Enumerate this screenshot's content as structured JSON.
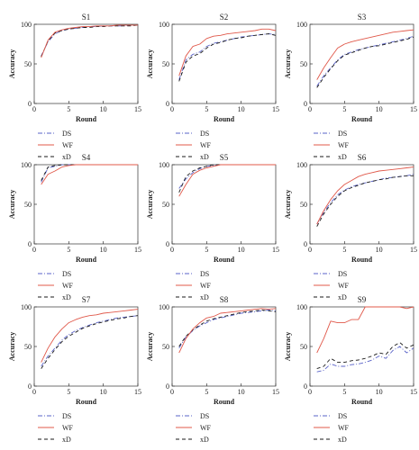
{
  "figure": {
    "title": ""
  },
  "styles": {
    "DS": {
      "color": "#5a63c8",
      "dash": "5,2,1,2"
    },
    "WF": {
      "color": "#e0584a",
      "dash": ""
    },
    "xD": {
      "color": "#1a1a1a",
      "dash": "4,3"
    }
  },
  "chart_data": [
    {
      "type": "line",
      "title": "S1",
      "xlabel": "Round",
      "ylabel": "Accuracy",
      "xlim": [
        0,
        15
      ],
      "ylim": [
        0,
        100
      ],
      "xticks": [
        0,
        5,
        10,
        15
      ],
      "yticks": [
        0,
        50,
        100
      ],
      "x": [
        1,
        2,
        3,
        4,
        5,
        6,
        7,
        8,
        9,
        10,
        11,
        12,
        13,
        14,
        15
      ],
      "series": [
        {
          "name": "DS",
          "values": [
            60,
            78,
            88,
            92,
            94,
            95,
            96,
            97,
            97,
            98,
            98,
            98,
            98,
            99,
            99
          ]
        },
        {
          "name": "WF",
          "values": [
            58,
            80,
            90,
            93,
            95,
            96,
            97,
            97,
            98,
            98,
            98,
            99,
            99,
            99,
            99
          ]
        },
        {
          "name": "xD",
          "values": [
            59,
            79,
            89,
            92,
            94,
            95,
            96,
            96,
            97,
            97,
            98,
            98,
            98,
            98,
            99
          ]
        }
      ]
    },
    {
      "type": "line",
      "title": "S2",
      "xlabel": "Round",
      "ylabel": "Accuracy",
      "xlim": [
        0,
        15
      ],
      "ylim": [
        0,
        100
      ],
      "xticks": [
        0,
        5,
        10,
        15
      ],
      "yticks": [
        0,
        50,
        100
      ],
      "x": [
        1,
        2,
        3,
        4,
        5,
        6,
        7,
        8,
        9,
        10,
        11,
        12,
        13,
        14,
        15
      ],
      "series": [
        {
          "name": "DS",
          "values": [
            30,
            55,
            62,
            65,
            72,
            76,
            78,
            80,
            82,
            84,
            85,
            86,
            87,
            88,
            87
          ]
        },
        {
          "name": "WF",
          "values": [
            35,
            60,
            72,
            75,
            82,
            85,
            86,
            88,
            89,
            90,
            91,
            92,
            94,
            94,
            92
          ]
        },
        {
          "name": "xD",
          "values": [
            28,
            52,
            60,
            63,
            70,
            75,
            77,
            80,
            82,
            83,
            85,
            86,
            87,
            88,
            86
          ]
        }
      ]
    },
    {
      "type": "line",
      "title": "S3",
      "xlabel": "Round",
      "ylabel": "Accuracy",
      "xlim": [
        0,
        15
      ],
      "ylim": [
        0,
        100
      ],
      "xticks": [
        0,
        5,
        10,
        15
      ],
      "yticks": [
        0,
        50,
        100
      ],
      "x": [
        1,
        2,
        3,
        4,
        5,
        6,
        7,
        8,
        9,
        10,
        11,
        12,
        13,
        14,
        15
      ],
      "series": [
        {
          "name": "DS",
          "values": [
            22,
            35,
            45,
            55,
            62,
            65,
            68,
            70,
            72,
            74,
            76,
            78,
            80,
            82,
            85
          ]
        },
        {
          "name": "WF",
          "values": [
            30,
            45,
            58,
            70,
            75,
            78,
            80,
            82,
            84,
            86,
            88,
            90,
            91,
            92,
            93
          ]
        },
        {
          "name": "xD",
          "values": [
            20,
            33,
            44,
            54,
            61,
            64,
            67,
            70,
            72,
            73,
            75,
            77,
            79,
            81,
            84
          ]
        }
      ]
    },
    {
      "type": "line",
      "title": "S4",
      "xlabel": "Round",
      "ylabel": "Accuracy",
      "xlim": [
        0,
        15
      ],
      "ylim": [
        0,
        100
      ],
      "xticks": [
        0,
        5,
        10,
        15
      ],
      "yticks": [
        0,
        50,
        100
      ],
      "x": [
        1,
        2,
        3,
        4,
        5,
        6,
        7,
        8,
        9,
        10,
        11,
        12,
        13,
        14,
        15
      ],
      "series": [
        {
          "name": "DS",
          "values": [
            78,
            96,
            98,
            100,
            100,
            100,
            100,
            100,
            100,
            100,
            100,
            100,
            100,
            100,
            100
          ]
        },
        {
          "name": "WF",
          "values": [
            75,
            88,
            92,
            97,
            99,
            100,
            100,
            100,
            100,
            100,
            100,
            100,
            100,
            100,
            100
          ]
        },
        {
          "name": "xD",
          "values": [
            80,
            97,
            99,
            100,
            100,
            100,
            100,
            100,
            100,
            100,
            100,
            100,
            100,
            100,
            100
          ]
        }
      ]
    },
    {
      "type": "line",
      "title": "S5",
      "xlabel": "Round",
      "ylabel": "Accuracy",
      "xlim": [
        0,
        15
      ],
      "ylim": [
        0,
        100
      ],
      "xticks": [
        0,
        5,
        10,
        15
      ],
      "yticks": [
        0,
        50,
        100
      ],
      "x": [
        1,
        2,
        3,
        4,
        5,
        6,
        7,
        8,
        9,
        10,
        11,
        12,
        13,
        14,
        15
      ],
      "series": [
        {
          "name": "DS",
          "values": [
            70,
            82,
            90,
            95,
            98,
            99,
            100,
            100,
            100,
            100,
            100,
            100,
            100,
            100,
            100
          ]
        },
        {
          "name": "WF",
          "values": [
            60,
            75,
            88,
            93,
            96,
            98,
            100,
            100,
            100,
            100,
            100,
            100,
            100,
            100,
            100
          ]
        },
        {
          "name": "xD",
          "values": [
            65,
            85,
            92,
            96,
            98,
            100,
            100,
            100,
            100,
            100,
            100,
            100,
            100,
            100,
            100
          ]
        }
      ]
    },
    {
      "type": "line",
      "title": "S6",
      "xlabel": "Round",
      "ylabel": "Accuracy",
      "xlim": [
        0,
        15
      ],
      "ylim": [
        0,
        100
      ],
      "xticks": [
        0,
        5,
        10,
        15
      ],
      "yticks": [
        0,
        50,
        100
      ],
      "x": [
        1,
        2,
        3,
        4,
        5,
        6,
        7,
        8,
        9,
        10,
        11,
        12,
        13,
        14,
        15
      ],
      "series": [
        {
          "name": "DS",
          "values": [
            25,
            40,
            52,
            62,
            68,
            72,
            75,
            77,
            79,
            81,
            83,
            84,
            85,
            86,
            88
          ]
        },
        {
          "name": "WF",
          "values": [
            25,
            42,
            56,
            67,
            75,
            80,
            85,
            88,
            90,
            92,
            93,
            94,
            95,
            96,
            97
          ]
        },
        {
          "name": "xD",
          "values": [
            22,
            38,
            50,
            60,
            67,
            71,
            74,
            77,
            79,
            81,
            82,
            84,
            85,
            86,
            86
          ]
        }
      ]
    },
    {
      "type": "line",
      "title": "S7",
      "xlabel": "Round",
      "ylabel": "Accuracy",
      "xlim": [
        0,
        15
      ],
      "ylim": [
        0,
        100
      ],
      "xticks": [
        0,
        5,
        10,
        15
      ],
      "yticks": [
        0,
        50,
        100
      ],
      "x": [
        1,
        2,
        3,
        4,
        5,
        6,
        7,
        8,
        9,
        10,
        11,
        12,
        13,
        14,
        15
      ],
      "series": [
        {
          "name": "DS",
          "values": [
            25,
            38,
            48,
            58,
            65,
            70,
            74,
            77,
            80,
            82,
            84,
            86,
            87,
            88,
            89
          ]
        },
        {
          "name": "WF",
          "values": [
            30,
            48,
            62,
            72,
            80,
            84,
            87,
            89,
            90,
            92,
            93,
            94,
            95,
            96,
            97
          ]
        },
        {
          "name": "xD",
          "values": [
            22,
            35,
            46,
            56,
            63,
            68,
            73,
            76,
            79,
            81,
            83,
            85,
            86,
            88,
            89
          ]
        }
      ]
    },
    {
      "type": "line",
      "title": "S8",
      "xlabel": "Round",
      "ylabel": "Accuracy",
      "xlim": [
        0,
        15
      ],
      "ylim": [
        0,
        100
      ],
      "xticks": [
        0,
        5,
        10,
        15
      ],
      "yticks": [
        0,
        50,
        100
      ],
      "x": [
        1,
        2,
        3,
        4,
        5,
        6,
        7,
        8,
        9,
        10,
        11,
        12,
        13,
        14,
        15
      ],
      "series": [
        {
          "name": "DS",
          "values": [
            48,
            62,
            70,
            76,
            80,
            84,
            86,
            88,
            90,
            92,
            93,
            94,
            95,
            96,
            95
          ]
        },
        {
          "name": "WF",
          "values": [
            42,
            60,
            72,
            80,
            86,
            88,
            92,
            93,
            94,
            95,
            96,
            97,
            98,
            97,
            98
          ]
        },
        {
          "name": "xD",
          "values": [
            50,
            63,
            71,
            77,
            82,
            85,
            87,
            89,
            91,
            93,
            94,
            95,
            96,
            95,
            94
          ]
        }
      ]
    },
    {
      "type": "line",
      "title": "S9",
      "xlabel": "Round",
      "ylabel": "Accuracy",
      "xlim": [
        0,
        15
      ],
      "ylim": [
        0,
        100
      ],
      "xticks": [
        0,
        5,
        10,
        15
      ],
      "yticks": [
        0,
        50,
        100
      ],
      "x": [
        1,
        2,
        3,
        4,
        5,
        6,
        7,
        8,
        9,
        10,
        11,
        12,
        13,
        14,
        15
      ],
      "series": [
        {
          "name": "DS",
          "values": [
            18,
            20,
            28,
            25,
            25,
            27,
            28,
            30,
            33,
            38,
            35,
            45,
            50,
            42,
            48
          ]
        },
        {
          "name": "WF",
          "values": [
            42,
            60,
            82,
            80,
            80,
            84,
            84,
            100,
            100,
            100,
            100,
            100,
            100,
            98,
            100
          ]
        },
        {
          "name": "xD",
          "values": [
            22,
            25,
            35,
            30,
            30,
            32,
            33,
            35,
            38,
            42,
            40,
            50,
            55,
            48,
            52
          ]
        }
      ]
    }
  ]
}
